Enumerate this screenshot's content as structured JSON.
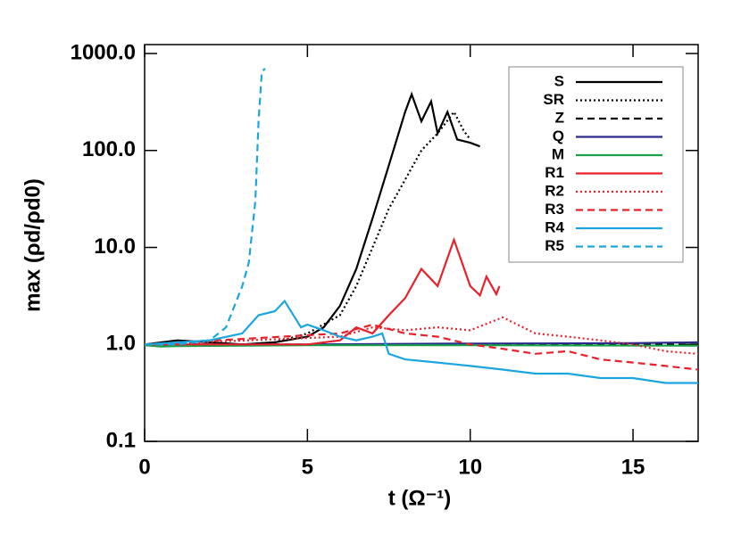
{
  "chart_data": {
    "type": "line",
    "x_label": "t (Ω⁻¹)",
    "y_label": "max (ρd/ρd0)",
    "log_y": true,
    "xlim": [
      0,
      17
    ],
    "ylim": [
      0.1,
      1000
    ],
    "xticks": [
      0,
      5,
      10,
      15
    ],
    "yticks": [
      {
        "value": 0.1,
        "label": "0.1"
      },
      {
        "value": 1,
        "label": "1.0"
      },
      {
        "value": 10,
        "label": "10.0"
      },
      {
        "value": 100,
        "label": "100.0"
      },
      {
        "value": 1000,
        "label": "1000.0"
      }
    ],
    "legend": "upper right",
    "series": [
      {
        "name": "S",
        "color": "#000000",
        "dash": "solid",
        "x": [
          0,
          1,
          2,
          3,
          4,
          5,
          5.5,
          6,
          6.5,
          7,
          7.5,
          8,
          8.2,
          8.5,
          8.8,
          9,
          9.3,
          9.6,
          10,
          10.3
        ],
        "values": [
          1,
          1.1,
          1.05,
          1,
          1.05,
          1.2,
          1.5,
          2.5,
          6,
          20,
          70,
          250,
          380,
          200,
          320,
          150,
          250,
          130,
          120,
          110
        ]
      },
      {
        "name": "SR",
        "color": "#000000",
        "dash": "dotted",
        "x": [
          0,
          2,
          3,
          4,
          5,
          6,
          6.5,
          7,
          7.5,
          8,
          8.5,
          9,
          9.5,
          9.8,
          10
        ],
        "values": [
          1,
          1,
          1,
          1.05,
          1.3,
          2,
          4,
          10,
          25,
          50,
          100,
          150,
          250,
          160,
          130
        ]
      },
      {
        "name": "Z",
        "color": "#000000",
        "dash": "dashed",
        "x": [
          0,
          5,
          10,
          17
        ],
        "values": [
          1,
          1,
          1,
          1
        ]
      },
      {
        "name": "Q",
        "color": "#2b2b8c",
        "dash": "solid",
        "x": [
          0,
          5,
          10,
          15,
          17
        ],
        "values": [
          1,
          1,
          1.02,
          1.03,
          1.05
        ]
      },
      {
        "name": "M",
        "color": "#1aa14a",
        "dash": "solid",
        "x": [
          0,
          0.5,
          1,
          5,
          10,
          17
        ],
        "values": [
          0.98,
          0.95,
          0.96,
          0.98,
          0.98,
          0.97
        ]
      },
      {
        "name": "R1",
        "color": "#e8212a",
        "dash": "solid",
        "x": [
          0,
          5,
          6,
          6.5,
          7,
          7.5,
          8,
          8.5,
          9,
          9.5,
          10,
          10.3,
          10.5,
          10.8,
          10.9
        ],
        "values": [
          1,
          1,
          1.1,
          1.5,
          1.3,
          2,
          3,
          6,
          4,
          12,
          4,
          3.2,
          5,
          3.3,
          4
        ]
      },
      {
        "name": "R2",
        "color": "#e8212a",
        "dash": "dotted",
        "x": [
          0,
          6,
          7,
          8,
          9,
          10,
          11,
          12,
          13,
          14,
          15,
          16,
          17
        ],
        "values": [
          1,
          1.2,
          1.5,
          1.4,
          1.5,
          1.4,
          1.9,
          1.3,
          1.2,
          1.1,
          1,
          0.85,
          0.8
        ]
      },
      {
        "name": "R3",
        "color": "#e8212a",
        "dash": "dashed",
        "x": [
          0,
          6,
          7,
          8,
          9,
          10,
          11,
          12,
          13,
          14,
          15,
          16,
          17
        ],
        "values": [
          1,
          1.3,
          1.6,
          1.3,
          1.2,
          1,
          0.9,
          0.8,
          0.85,
          0.7,
          0.65,
          0.6,
          0.55
        ]
      },
      {
        "name": "R4",
        "color": "#1ba6e0",
        "dash": "solid",
        "x": [
          0,
          2,
          3,
          3.5,
          4,
          4.3,
          4.8,
          5,
          5.5,
          6,
          6.5,
          7,
          7.3,
          7.5,
          8,
          9,
          10,
          11,
          12,
          13,
          14,
          15,
          16,
          17
        ],
        "values": [
          1,
          1.1,
          1.3,
          2,
          2.2,
          2.8,
          1.5,
          1.6,
          1.4,
          1.2,
          1.1,
          1.2,
          1.3,
          0.8,
          0.7,
          0.65,
          0.6,
          0.55,
          0.5,
          0.5,
          0.45,
          0.45,
          0.4,
          0.4
        ]
      },
      {
        "name": "R5",
        "color": "#1ba6e0",
        "dash": "dashed",
        "x": [
          0,
          1,
          2,
          2.5,
          3,
          3.2,
          3.4,
          3.5,
          3.6,
          3.7
        ],
        "values": [
          1,
          1,
          1.1,
          1.5,
          4,
          7,
          30,
          200,
          650,
          700
        ]
      }
    ]
  }
}
